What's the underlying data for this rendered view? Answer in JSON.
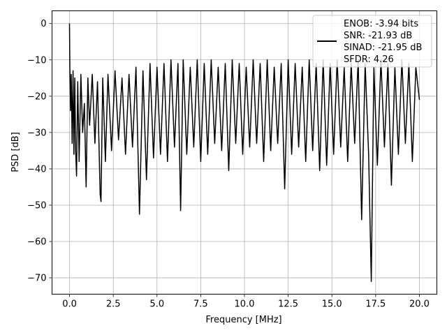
{
  "chart_data": {
    "type": "line",
    "title": "",
    "xlabel": "Frequency [MHz]",
    "ylabel": "PSD [dB]",
    "xlim": [
      -1.0,
      21.0
    ],
    "ylim": [
      -74.5,
      3.5
    ],
    "xticks": [
      0.0,
      2.5,
      5.0,
      7.5,
      10.0,
      12.5,
      15.0,
      17.5,
      20.0
    ],
    "xtick_labels": [
      "0.0",
      "2.5",
      "5.0",
      "7.5",
      "10.0",
      "12.5",
      "15.0",
      "17.5",
      "20.0"
    ],
    "yticks": [
      0,
      -10,
      -20,
      -30,
      -40,
      -50,
      -60,
      -70
    ],
    "ytick_labels": [
      "0",
      "−10",
      "−20",
      "−30",
      "−40",
      "−50",
      "−60",
      "−70"
    ],
    "grid": true,
    "legend_position": "top-right",
    "line_color": "#000000",
    "legend": [
      "ENOB: -3.94 bits",
      "SNR: -21.93 dB",
      "SINAD: -21.95 dB",
      "SFDR: 4.26"
    ],
    "series": [
      {
        "x": [
          0.0,
          0.02,
          0.06,
          0.1,
          0.15,
          0.2,
          0.25,
          0.3,
          0.35,
          0.4,
          0.47,
          0.55,
          0.65,
          0.75,
          0.85,
          0.95,
          1.05,
          1.15,
          1.3,
          1.45,
          1.6,
          1.75,
          1.8,
          1.9,
          2.05,
          2.2,
          2.4,
          2.6,
          2.8,
          3.0,
          3.2,
          3.4,
          3.6,
          3.8,
          4.0,
          4.2,
          4.4,
          4.6,
          4.8,
          5.0,
          5.2,
          5.4,
          5.6,
          5.8,
          6.0,
          6.2,
          6.35,
          6.5,
          6.7,
          6.9,
          7.1,
          7.3,
          7.5,
          7.7,
          7.9,
          8.1,
          8.3,
          8.5,
          8.7,
          8.9,
          9.1,
          9.3,
          9.5,
          9.7,
          9.9,
          10.1,
          10.3,
          10.5,
          10.7,
          10.9,
          11.1,
          11.3,
          11.5,
          11.7,
          11.9,
          12.1,
          12.3,
          12.5,
          12.7,
          12.9,
          13.1,
          13.3,
          13.5,
          13.7,
          13.9,
          14.1,
          14.3,
          14.5,
          14.7,
          14.9,
          15.1,
          15.3,
          15.5,
          15.7,
          15.9,
          16.1,
          16.3,
          16.5,
          16.7,
          16.9,
          17.1,
          17.25,
          17.4,
          17.6,
          17.8,
          18.0,
          18.2,
          18.4,
          18.6,
          18.8,
          19.0,
          19.2,
          19.4,
          19.6,
          19.8,
          20.0
        ],
        "y": [
          0.0,
          -12,
          -24,
          -14,
          -33,
          -13,
          -36,
          -15,
          -35,
          -42,
          -16,
          -38,
          -14,
          -30,
          -22,
          -45,
          -15,
          -28,
          -14,
          -33,
          -16,
          -47,
          -49,
          -15,
          -38,
          -14,
          -35,
          -13,
          -32,
          -15,
          -36,
          -14,
          -34,
          -12,
          -52.5,
          -13,
          -43,
          -11,
          -37,
          -12,
          -36,
          -11,
          -38,
          -10,
          -34,
          -11,
          -51.5,
          -10,
          -36,
          -12,
          -34,
          -10,
          -38,
          -11,
          -36,
          -10,
          -33,
          -12,
          -35,
          -11,
          -40.5,
          -10,
          -33,
          -11,
          -36,
          -12,
          -34,
          -10,
          -33,
          -11,
          -38,
          -10,
          -35,
          -12,
          -33,
          -11,
          -45.5,
          -10,
          -36,
          -11,
          -34,
          -12,
          -38,
          -10,
          -35,
          -11,
          -40.5,
          -10,
          -39,
          -11,
          -36,
          -10,
          -34,
          -12,
          -38,
          -11,
          -33,
          -10,
          -54,
          -11,
          -36,
          -71,
          -12,
          -39,
          -10,
          -34,
          -11,
          -44.5,
          -12,
          -36,
          -10,
          -33,
          -11,
          -38,
          -12,
          -21
        ]
      }
    ]
  }
}
